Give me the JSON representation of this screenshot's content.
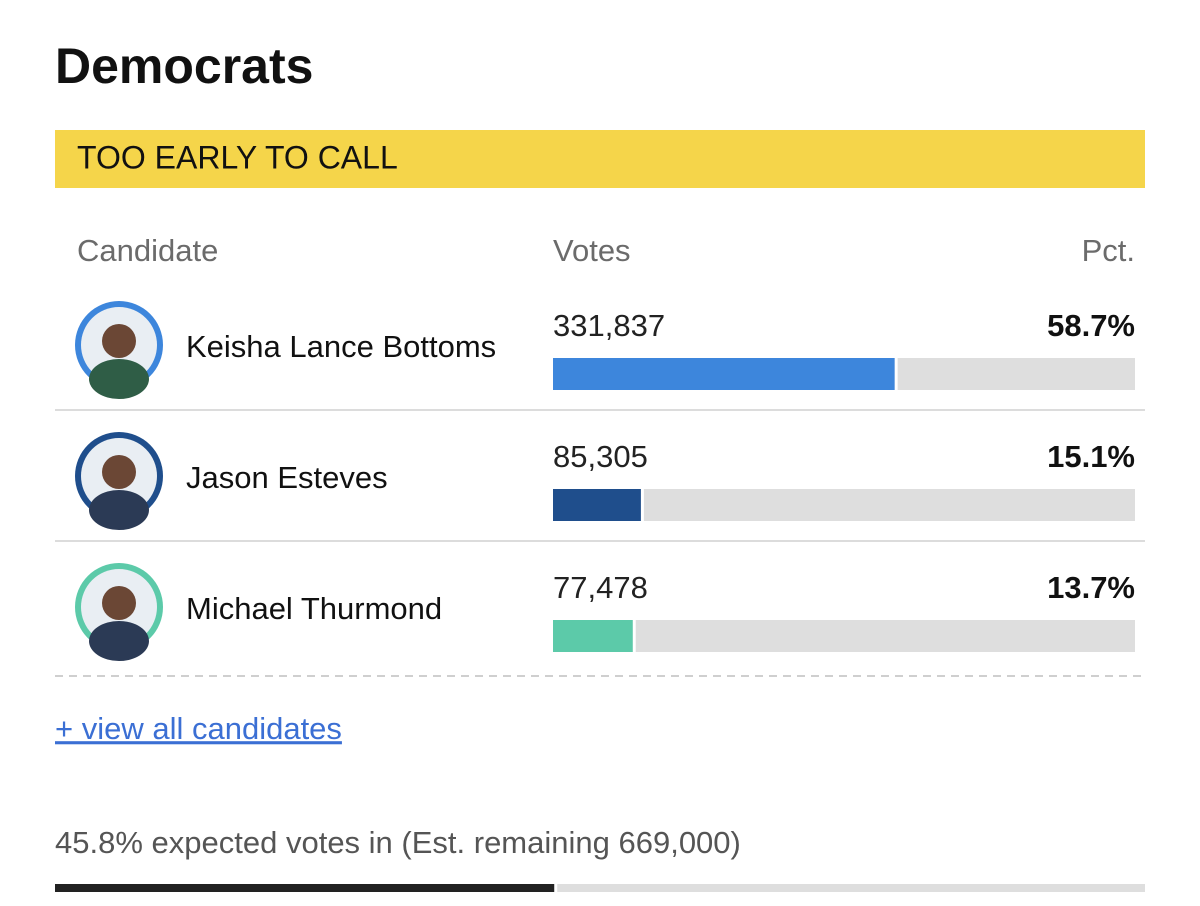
{
  "title": "Democrats",
  "status": "TOO EARLY TO CALL",
  "table": {
    "headers": [
      "Candidate",
      "Votes",
      "Pct."
    ],
    "rows": [
      {
        "name": "Keisha Lance Bottoms",
        "votes": "331,837",
        "pct": {
          "value": 58.7,
          "label": "58.7%"
        },
        "color": "#3d86dc"
      },
      {
        "name": "Jason Esteves",
        "votes": "85,305",
        "pct": {
          "value": 15.1,
          "label": "15.1%"
        },
        "color": "#1f4e8c"
      },
      {
        "name": "Michael Thurmond",
        "votes": "77,478",
        "pct": {
          "value": 13.7,
          "label": "13.7%"
        },
        "color": "#5ccaa9"
      }
    ]
  },
  "link": "+ view all candidates",
  "footer": {
    "pct": {
      "value": 45.8,
      "label": "45.8%"
    },
    "text": "expected votes in (Est. remaining 669,000)"
  }
}
